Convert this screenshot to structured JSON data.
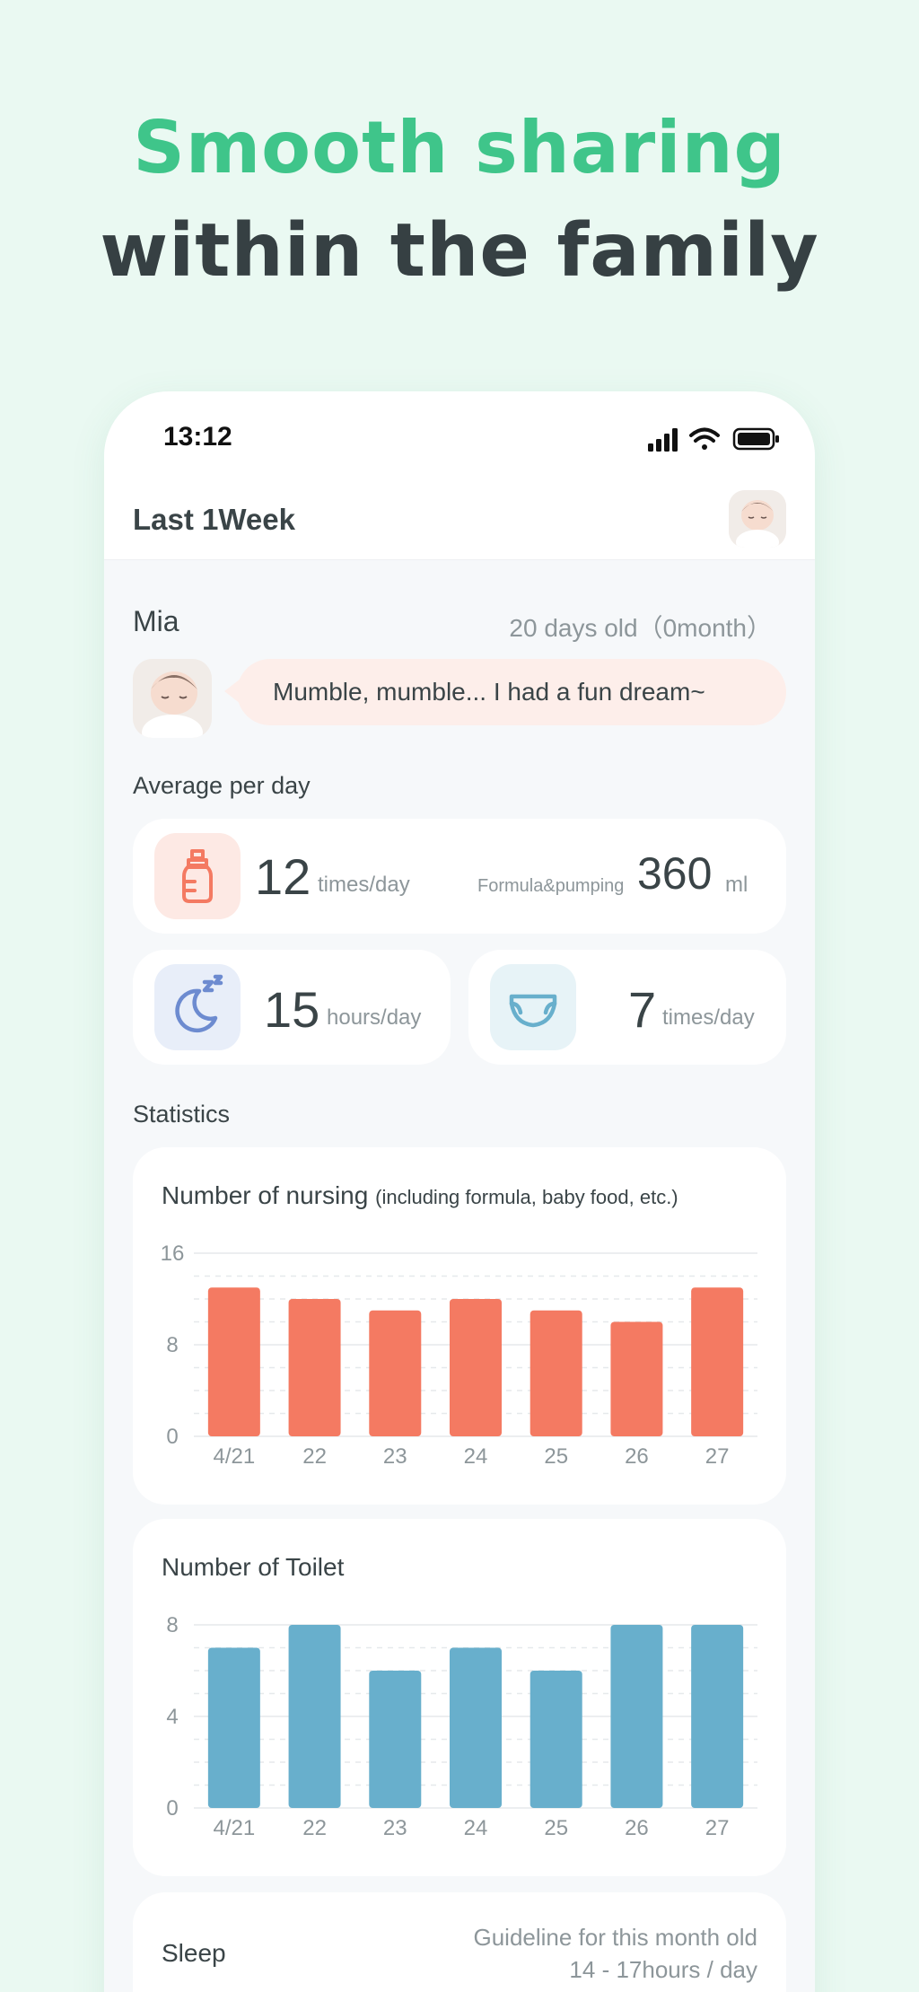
{
  "headline": {
    "line1": "Smooth sharing",
    "line2": "within the family"
  },
  "status_bar": {
    "time": "13:12",
    "icons": [
      "signal-icon",
      "wifi-icon",
      "battery-icon"
    ]
  },
  "nav": {
    "title": "Last 1Week",
    "avatar_icon": "baby-avatar-icon"
  },
  "baby": {
    "name": "Mia",
    "age": "20 days old（0month）",
    "message": "Mumble, mumble... I had a fun dream~"
  },
  "average": {
    "label": "Average per day",
    "nursing": {
      "value": "12",
      "unit": "times/day",
      "icon": "bottle-icon",
      "color": "#f47a62"
    },
    "formula": {
      "label": "Formula&pumping",
      "value": "360",
      "unit": "ml"
    },
    "sleep": {
      "value": "15",
      "unit": "hours/day",
      "icon": "moon-icon",
      "color": "#6d8bd0"
    },
    "toilet": {
      "value": "7",
      "unit": "times/day",
      "icon": "diaper-icon",
      "color": "#68afcc"
    }
  },
  "statistics": {
    "label": "Statistics",
    "nursing_title": "Number of nursing",
    "nursing_note": "(including formula, baby food, etc.)",
    "toilet_title": "Number of Toilet",
    "sleep_title": "Sleep",
    "sleep_guide_line1": "Guideline for this month old",
    "sleep_guide_line2": "14 - 17hours / day"
  },
  "chart_data": [
    {
      "type": "bar",
      "title": "Number of nursing (including formula, baby food, etc.)",
      "categories": [
        "4/21",
        "22",
        "23",
        "24",
        "25",
        "26",
        "27"
      ],
      "values": [
        13,
        12,
        11,
        12,
        11,
        10,
        13
      ],
      "yticks": [
        "16",
        "8",
        "0"
      ],
      "ylim": [
        0,
        16
      ],
      "color": "#f47a62",
      "grid": true
    },
    {
      "type": "bar",
      "title": "Number of Toilet",
      "categories": [
        "4/21",
        "22",
        "23",
        "24",
        "25",
        "26",
        "27"
      ],
      "values": [
        7,
        8,
        6,
        7,
        6,
        8,
        8
      ],
      "yticks": [
        "8",
        "4",
        "0"
      ],
      "ylim": [
        0,
        8
      ],
      "color": "#68afcc",
      "grid": true
    }
  ]
}
